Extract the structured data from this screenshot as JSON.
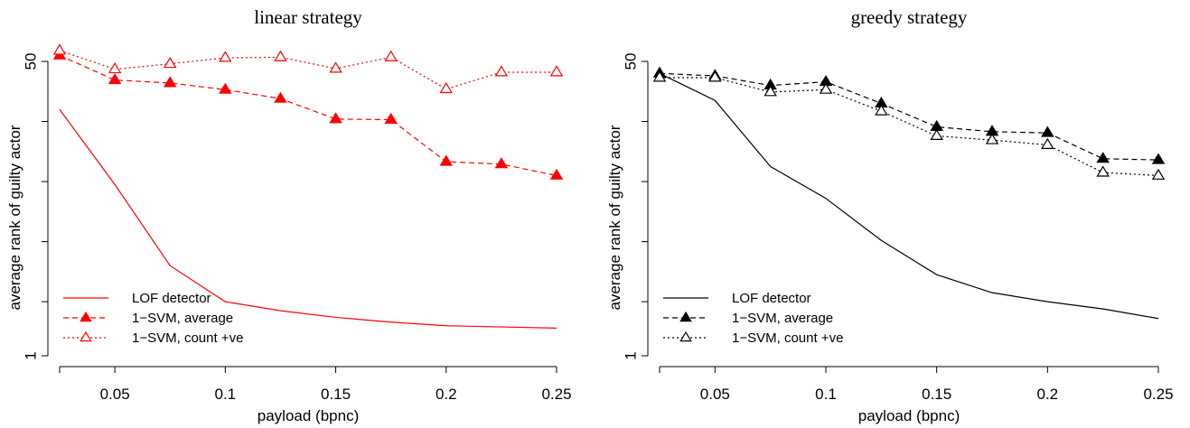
{
  "chart_data": [
    {
      "type": "line",
      "title": "linear strategy",
      "xlabel": "payload (bpnc)",
      "ylabel": "average rank of guilty actor",
      "color": "#ff0000",
      "x": [
        0.025,
        0.05,
        0.075,
        0.1,
        0.125,
        0.15,
        0.175,
        0.2,
        0.225,
        0.25
      ],
      "xticks": [
        "0.05",
        "0.1",
        "0.15",
        "0.2",
        "0.25"
      ],
      "xtick_values": [
        0.05,
        0.1,
        0.15,
        0.2,
        0.25
      ],
      "xlim": [
        0.025,
        0.25
      ],
      "ylim": [
        1,
        50
      ],
      "yticks": [
        "1",
        "50"
      ],
      "ytick_values": [
        1,
        50
      ],
      "y_minor_ticks": [
        10,
        20,
        30,
        40
      ],
      "series": [
        {
          "name": "LOF detector",
          "style": "solid",
          "marker": "none",
          "values": [
            42.0,
            29.5,
            16.0,
            10.0,
            8.5,
            7.4,
            6.6,
            6.0,
            5.8,
            5.6
          ]
        },
        {
          "name": "1−SVM, average",
          "style": "dashed",
          "marker": "filled-triangle",
          "values": [
            51.0,
            46.9,
            46.4,
            45.3,
            43.8,
            40.4,
            40.3,
            33.3,
            32.9,
            31.0
          ]
        },
        {
          "name": "1−SVM, count +ve",
          "style": "dotted",
          "marker": "open-triangle",
          "values": [
            51.8,
            48.7,
            49.6,
            50.6,
            50.7,
            48.8,
            50.7,
            45.4,
            48.2,
            48.2
          ]
        }
      ],
      "legend": {
        "position": "bottom-left",
        "entries": [
          "LOF detector",
          "1−SVM, average",
          "1−SVM, count +ve"
        ]
      }
    },
    {
      "type": "line",
      "title": "greedy strategy",
      "xlabel": "payload (bpnc)",
      "ylabel": "average rank of guilty actor",
      "color": "#000000",
      "x": [
        0.025,
        0.05,
        0.075,
        0.1,
        0.125,
        0.15,
        0.175,
        0.2,
        0.225,
        0.25
      ],
      "xticks": [
        "0.05",
        "0.1",
        "0.15",
        "0.2",
        "0.25"
      ],
      "xtick_values": [
        0.05,
        0.1,
        0.15,
        0.2,
        0.25
      ],
      "xlim": [
        0.025,
        0.25
      ],
      "ylim": [
        1,
        50
      ],
      "yticks": [
        "1",
        "50"
      ],
      "ytick_values": [
        1,
        50
      ],
      "y_minor_ticks": [
        10,
        20,
        30,
        40
      ],
      "series": [
        {
          "name": "LOF detector",
          "style": "solid",
          "marker": "none",
          "values": [
            48.0,
            43.5,
            32.5,
            27.2,
            20.2,
            14.5,
            11.5,
            10.0,
            8.8,
            7.2
          ]
        },
        {
          "name": "1−SVM, average",
          "style": "dashed",
          "marker": "filled-triangle",
          "values": [
            48.0,
            47.6,
            46.0,
            46.6,
            43.0,
            39.1,
            38.3,
            38.1,
            33.8,
            33.6
          ]
        },
        {
          "name": "1−SVM, count +ve",
          "style": "dotted",
          "marker": "open-triangle",
          "values": [
            47.3,
            47.3,
            44.9,
            45.3,
            41.7,
            37.6,
            36.9,
            36.1,
            31.5,
            31.0
          ]
        }
      ],
      "legend": {
        "position": "bottom-left",
        "entries": [
          "LOF detector",
          "1−SVM, average",
          "1−SVM, count +ve"
        ]
      }
    }
  ]
}
